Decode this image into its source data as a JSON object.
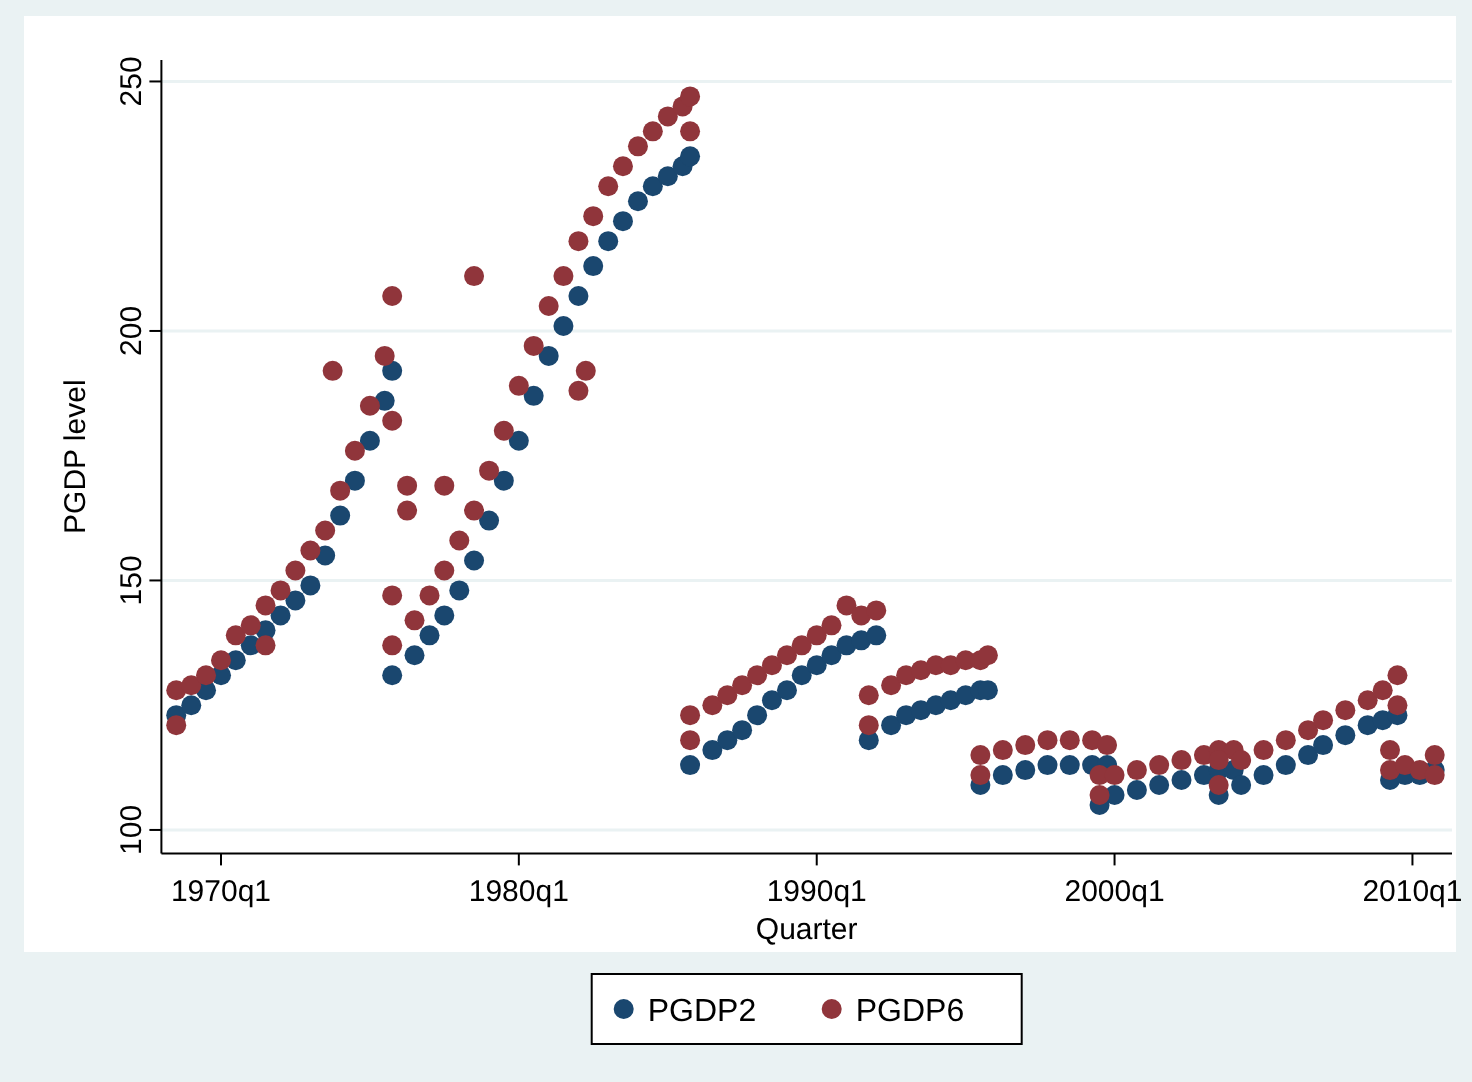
{
  "chart_data": {
    "type": "scatter",
    "xlabel": "Quarter",
    "ylabel": "PGDP level",
    "xlim": [
      "1968-01",
      "2011-05"
    ],
    "ylim": [
      95.3,
      254.3
    ],
    "xticks": [
      {
        "value": "1970-01",
        "label": "1970q1"
      },
      {
        "value": "1980-01",
        "label": "1980q1"
      },
      {
        "value": "1990-01",
        "label": "1990q1"
      },
      {
        "value": "2000-01",
        "label": "2000q1"
      },
      {
        "value": "2010-01",
        "label": "2010q1"
      }
    ],
    "yticks": [
      100,
      150,
      200,
      250
    ],
    "grid": "y",
    "legend": "bottom",
    "marker": "circle",
    "series": [
      {
        "name": "PGDP2",
        "color": "#1a476f",
        "x": [
          "1968-07",
          "1969-01",
          "1969-07",
          "1970-01",
          "1970-07",
          "1971-01",
          "1971-07",
          "1972-01",
          "1972-07",
          "1973-01",
          "1973-07",
          "1974-01",
          "1974-07",
          "1975-01",
          "1975-07",
          "1975-10",
          "1975-10",
          "1976-07",
          "1977-01",
          "1977-07",
          "1978-01",
          "1978-07",
          "1979-01",
          "1979-07",
          "1980-01",
          "1980-07",
          "1981-01",
          "1981-07",
          "1982-01",
          "1982-07",
          "1983-01",
          "1983-07",
          "1984-01",
          "1984-07",
          "1985-01",
          "1985-07",
          "1985-10",
          "1985-10",
          "1986-07",
          "1987-01",
          "1987-07",
          "1988-01",
          "1988-07",
          "1989-01",
          "1989-07",
          "1990-01",
          "1990-07",
          "1991-01",
          "1991-07",
          "1992-01",
          "1991-10",
          "1992-07",
          "1993-01",
          "1993-07",
          "1994-01",
          "1994-07",
          "1995-01",
          "1995-07",
          "1995-10",
          "1995-07",
          "1996-04",
          "1997-01",
          "1997-10",
          "1998-07",
          "1999-04",
          "1999-10",
          "1999-07",
          "2000-01",
          "2000-10",
          "2001-07",
          "2002-04",
          "2003-01",
          "2003-07",
          "2004-01",
          "2003-07",
          "2004-04",
          "2005-01",
          "2005-10",
          "2006-07",
          "2007-01",
          "2007-10",
          "2008-07",
          "2009-01",
          "2009-07",
          "2009-04",
          "2009-10",
          "2010-04",
          "2010-10"
        ],
        "values": [
          123,
          125,
          128,
          131,
          134,
          137,
          140,
          143,
          146,
          149,
          155,
          163,
          170,
          178,
          186,
          192,
          131,
          135,
          139,
          143,
          148,
          154,
          162,
          170,
          178,
          187,
          195,
          201,
          207,
          213,
          218,
          222,
          226,
          229,
          231,
          233,
          235,
          113,
          116,
          118,
          120,
          123,
          126,
          128,
          131,
          133,
          135,
          137,
          138,
          139,
          118,
          121,
          123,
          124,
          125,
          126,
          127,
          128,
          128,
          109,
          111,
          112,
          113,
          113,
          113,
          113,
          105,
          107,
          108,
          109,
          110,
          111,
          112,
          112,
          107,
          109,
          111,
          113,
          115,
          117,
          119,
          121,
          122,
          123,
          110,
          111,
          111,
          112
        ]
      },
      {
        "name": "PGDP6",
        "color": "#90353b",
        "x": [
          "1968-07",
          "1968-07",
          "1969-01",
          "1969-07",
          "1970-01",
          "1970-07",
          "1971-01",
          "1971-07",
          "1971-07",
          "1972-01",
          "1972-07",
          "1973-01",
          "1973-07",
          "1973-10",
          "1974-01",
          "1974-07",
          "1975-01",
          "1975-07",
          "1975-10",
          "1975-10",
          "1976-04",
          "1976-04",
          "1977-07",
          "1978-07",
          "1975-10",
          "1975-10",
          "1976-07",
          "1977-01",
          "1977-07",
          "1978-01",
          "1978-07",
          "1979-01",
          "1979-07",
          "1980-01",
          "1980-07",
          "1981-01",
          "1981-07",
          "1982-01",
          "1982-01",
          "1982-04",
          "1982-07",
          "1983-01",
          "1983-07",
          "1984-01",
          "1984-07",
          "1985-01",
          "1985-07",
          "1985-10",
          "1985-10",
          "1985-10",
          "1985-10",
          "1986-07",
          "1987-01",
          "1987-07",
          "1988-01",
          "1988-07",
          "1989-01",
          "1989-07",
          "1990-01",
          "1990-07",
          "1991-01",
          "1991-07",
          "1992-01",
          "1991-10",
          "1991-10",
          "1992-07",
          "1993-01",
          "1993-07",
          "1994-01",
          "1994-07",
          "1995-01",
          "1995-07",
          "1995-10",
          "1995-07",
          "1995-07",
          "1996-04",
          "1997-01",
          "1997-10",
          "1998-07",
          "1999-04",
          "1999-10",
          "1999-07",
          "1999-07",
          "2000-01",
          "2000-10",
          "2001-07",
          "2002-04",
          "2003-01",
          "2003-07",
          "2004-01",
          "2003-07",
          "2003-07",
          "2004-04",
          "2005-01",
          "2005-10",
          "2006-07",
          "2007-01",
          "2007-10",
          "2008-07",
          "2009-01",
          "2009-07",
          "2009-07",
          "2009-04",
          "2009-04",
          "2009-10",
          "2010-04",
          "2010-10",
          "2010-10"
        ],
        "values": [
          121,
          128,
          129,
          131,
          134,
          139,
          141,
          145,
          137,
          148,
          152,
          156,
          160,
          192,
          168,
          176,
          185,
          195,
          207,
          182,
          169,
          164,
          169,
          211,
          137,
          147,
          142,
          147,
          152,
          158,
          164,
          172,
          180,
          189,
          197,
          205,
          211,
          218,
          188,
          192,
          223,
          229,
          233,
          237,
          240,
          243,
          245,
          247,
          240,
          118,
          123,
          125,
          127,
          129,
          131,
          133,
          135,
          137,
          139,
          141,
          145,
          143,
          144,
          121,
          127,
          129,
          131,
          132,
          133,
          133,
          134,
          134,
          135,
          111,
          115,
          116,
          117,
          118,
          118,
          118,
          117,
          107,
          111,
          111,
          112,
          113,
          114,
          115,
          116,
          116,
          109,
          114,
          114,
          116,
          118,
          120,
          122,
          124,
          126,
          128,
          131,
          125,
          112,
          116,
          113,
          112,
          115,
          111
        ]
      }
    ]
  }
}
